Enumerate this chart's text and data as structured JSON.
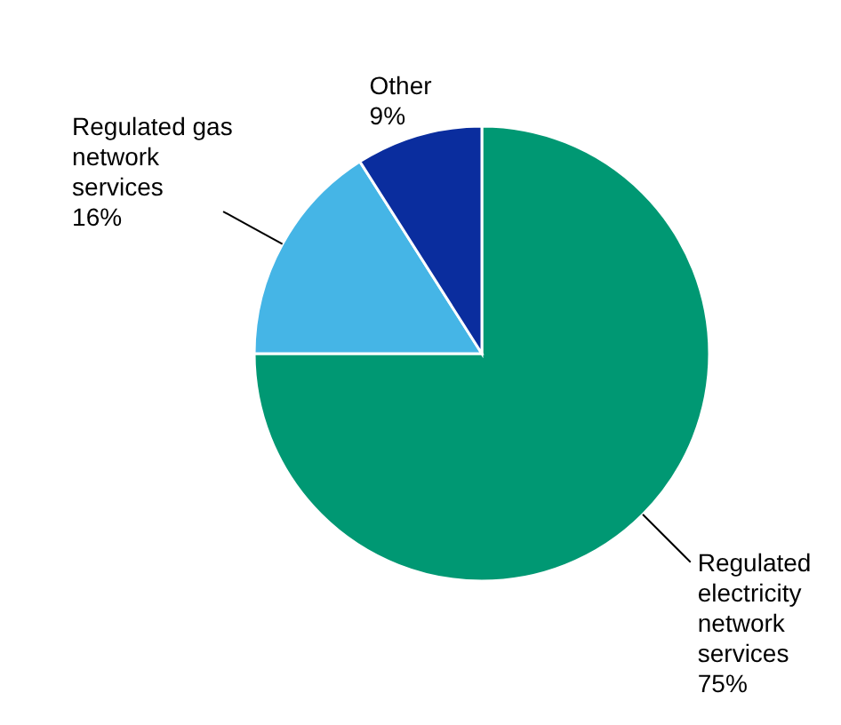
{
  "chart_data": {
    "type": "pie",
    "categories": [
      "Regulated electricity network services",
      "Regulated gas network services",
      "Other"
    ],
    "values": [
      75,
      16,
      9
    ],
    "value_labels": [
      "75%",
      "16%",
      "9%"
    ],
    "colors": [
      "#009873",
      "#45b5e6",
      "#0a2d9e"
    ]
  }
}
